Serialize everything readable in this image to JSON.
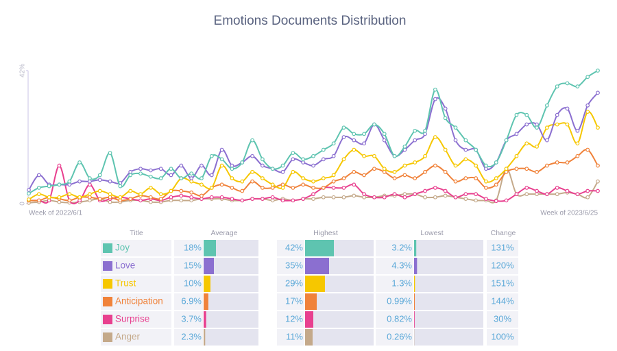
{
  "chart_data": {
    "type": "line",
    "title": "Emotions Documents Distribution",
    "categories": [
      "Week of 2022/6/1",
      null,
      null,
      null,
      null,
      null,
      null,
      null,
      null,
      null,
      null,
      null,
      null,
      null,
      null,
      null,
      null,
      null,
      null,
      null,
      null,
      null,
      null,
      null,
      null,
      null,
      null,
      null,
      null,
      null,
      null,
      null,
      null,
      null,
      null,
      null,
      null,
      null,
      null,
      null,
      null,
      null,
      null,
      null,
      null,
      null,
      null,
      null,
      null,
      null,
      null,
      null,
      null,
      null,
      null,
      null,
      "Week of 2023/6/25"
    ],
    "ylim": [
      0,
      42
    ],
    "yticks": [
      0,
      {
        "value": 42,
        "label": "42%"
      }
    ],
    "series": [
      {
        "name": "Joy",
        "color": "#5ec4b0",
        "values": [
          3.2,
          5,
          5.5,
          6,
          7,
          13,
          8,
          9,
          16,
          5.5,
          9,
          9.5,
          8.5,
          8,
          11,
          8,
          9.5,
          8,
          15,
          14,
          11,
          13,
          20,
          14,
          11,
          12,
          16,
          14,
          15,
          17,
          19,
          24,
          22,
          22,
          25,
          22,
          15,
          18,
          23,
          23,
          36,
          27,
          24,
          20,
          17,
          12,
          13,
          20,
          28,
          28,
          24,
          31,
          37,
          38,
          37,
          40,
          42
        ]
      },
      {
        "name": "Love",
        "color": "#8b6fd0",
        "values": [
          4.3,
          9,
          6,
          6,
          6,
          7,
          7,
          7.5,
          7,
          6.5,
          10,
          11,
          10.5,
          11,
          9,
          12,
          8,
          12,
          9,
          17,
          12,
          13,
          15,
          12,
          11,
          10,
          14,
          13,
          12,
          14,
          15,
          21,
          20,
          19,
          25,
          20,
          15,
          17,
          20,
          22,
          33,
          30,
          20,
          17,
          17,
          11,
          13,
          20,
          22,
          25,
          25,
          20,
          28,
          30,
          23,
          31,
          35
        ]
      },
      {
        "name": "Trust",
        "color": "#f6c700",
        "values": [
          1.3,
          3,
          2,
          2,
          3,
          2,
          3,
          4,
          3,
          2,
          4,
          3,
          5,
          3,
          4,
          8,
          7,
          6,
          5,
          12,
          8,
          7,
          10,
          8,
          6,
          5,
          10,
          8,
          7,
          8,
          9,
          14,
          17,
          15,
          15,
          11,
          10,
          12,
          13,
          15,
          21,
          17,
          12,
          14,
          12,
          7,
          8,
          11,
          15,
          19,
          18,
          24,
          25,
          25,
          19,
          29,
          24
        ]
      },
      {
        "name": "Anticipation",
        "color": "#f0823a",
        "values": [
          0.99,
          1,
          2,
          1.5,
          1,
          2,
          2,
          1.5,
          2,
          1,
          1.5,
          2.5,
          2,
          1.5,
          4,
          4,
          3.5,
          2.5,
          5,
          6,
          5,
          4,
          7,
          5,
          5,
          6,
          5,
          6,
          5,
          5,
          7,
          8,
          10,
          9,
          11,
          10,
          8,
          9,
          8,
          10,
          12,
          10,
          7,
          8,
          8,
          5,
          6,
          10,
          11,
          11,
          10,
          12,
          13,
          13,
          15,
          17,
          12
        ]
      },
      {
        "name": "Surprise",
        "color": "#e8408f",
        "values": [
          1,
          1,
          1,
          12,
          1,
          1,
          6,
          1,
          1.5,
          2,
          1.5,
          1,
          1.5,
          1,
          2,
          2.5,
          2,
          1.5,
          2,
          2,
          1.5,
          1,
          1.5,
          1.5,
          2,
          1,
          1,
          1.5,
          3,
          5,
          5,
          5,
          6,
          3,
          2,
          2,
          3,
          2,
          3,
          4,
          5,
          4,
          2,
          3,
          3,
          1.5,
          0.82,
          1,
          3,
          5,
          4,
          3,
          5,
          4,
          3,
          4,
          4
        ]
      },
      {
        "name": "Anger",
        "color": "#c4a98a",
        "values": [
          0.26,
          0.5,
          1,
          0.5,
          0.3,
          0.5,
          1,
          1.5,
          0.5,
          0.5,
          1,
          1,
          0.5,
          0.5,
          1,
          1,
          1,
          1.5,
          1.5,
          1.5,
          1,
          1,
          1.5,
          1.5,
          1,
          1.5,
          1,
          1.5,
          1.5,
          2,
          2,
          2,
          2.5,
          2,
          2,
          2.5,
          2.5,
          3,
          3,
          2,
          2,
          2.5,
          2,
          1.5,
          1,
          1,
          1,
          11,
          3,
          3,
          3,
          3,
          3,
          3.5,
          3,
          2,
          7
        ]
      }
    ]
  },
  "table": {
    "columns": [
      "Title",
      "Average",
      "Highest",
      "Lowest",
      "Change"
    ],
    "rows": [
      {
        "name": "Joy",
        "average": {
          "value": 18,
          "label": "18%"
        },
        "highest": {
          "value": 42,
          "label": "42%"
        },
        "lowest": {
          "value": 3.2,
          "label": "3.2%"
        },
        "change": "131%"
      },
      {
        "name": "Love",
        "average": {
          "value": 15,
          "label": "15%"
        },
        "highest": {
          "value": 35,
          "label": "35%"
        },
        "lowest": {
          "value": 4.3,
          "label": "4.3%"
        },
        "change": "120%"
      },
      {
        "name": "Trust",
        "average": {
          "value": 10,
          "label": "10%"
        },
        "highest": {
          "value": 29,
          "label": "29%"
        },
        "lowest": {
          "value": 1.3,
          "label": "1.3%"
        },
        "change": "151%"
      },
      {
        "name": "Anticipation",
        "average": {
          "value": 6.9,
          "label": "6.9%"
        },
        "highest": {
          "value": 17,
          "label": "17%"
        },
        "lowest": {
          "value": 0.99,
          "label": "0.99%"
        },
        "change": "144%"
      },
      {
        "name": "Surprise",
        "average": {
          "value": 3.7,
          "label": "3.7%"
        },
        "highest": {
          "value": 12,
          "label": "12%"
        },
        "lowest": {
          "value": 0.82,
          "label": "0.82%"
        },
        "change": "30%"
      },
      {
        "name": "Anger",
        "average": {
          "value": 2.3,
          "label": "2.3%"
        },
        "highest": {
          "value": 11,
          "label": "11%"
        },
        "lowest": {
          "value": 0.26,
          "label": "0.26%"
        },
        "change": "100%"
      }
    ]
  }
}
